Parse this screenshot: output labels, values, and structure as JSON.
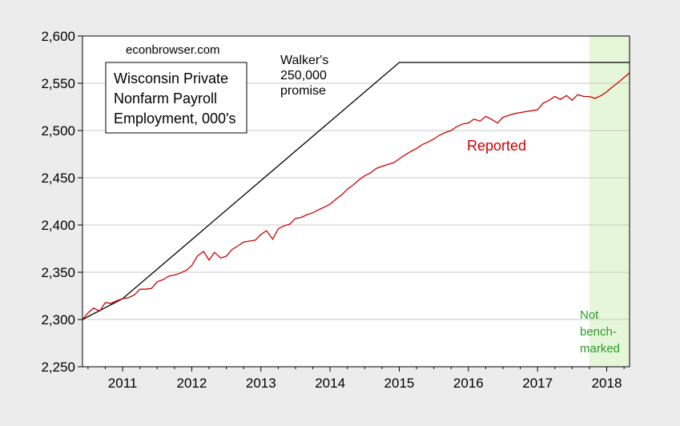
{
  "chart_data": {
    "type": "line",
    "title": "Wisconsin Private Nonfarm Payroll Employment, 000's",
    "title_lines": [
      "Wisconsin Private",
      "Nonfarm Payroll",
      "Employment, 000's"
    ],
    "source": "econbrowser.com",
    "ylim": [
      2250,
      2600
    ],
    "yticks": [
      2250,
      2300,
      2350,
      2400,
      2450,
      2500,
      2550,
      2600
    ],
    "ytick_labels": [
      "2,250",
      "2,300",
      "2,350",
      "2,400",
      "2,450",
      "2,500",
      "2,550",
      "2,600"
    ],
    "xlim": [
      2010.42,
      2018.33
    ],
    "xticks": [
      2011,
      2012,
      2013,
      2014,
      2015,
      2016,
      2017,
      2018
    ],
    "xtick_labels": [
      "2011",
      "2012",
      "2013",
      "2014",
      "2015",
      "2016",
      "2017",
      "2018"
    ],
    "grid": "horizontal",
    "colors": {
      "plot_bg": "#ffffff",
      "page_bg": "#ececec",
      "reported": "#cc0000",
      "promise": "#000000",
      "shade": "#e6f7d9",
      "shade_text": "#2a9a2a",
      "grid": "#c8c8c8"
    },
    "shaded_region": {
      "x_start": 2017.75,
      "x_end": 2018.33,
      "label_lines": [
        "Not",
        "bench-",
        "marked"
      ]
    },
    "series": [
      {
        "name": "Reported",
        "label_lines": [
          "Reported"
        ],
        "color": "#cc0000",
        "x": [
          2010.42,
          2010.5,
          2010.58,
          2010.67,
          2010.75,
          2010.83,
          2010.92,
          2011.0,
          2011.08,
          2011.17,
          2011.25,
          2011.33,
          2011.42,
          2011.5,
          2011.58,
          2011.67,
          2011.75,
          2011.83,
          2011.92,
          2012.0,
          2012.08,
          2012.17,
          2012.25,
          2012.33,
          2012.42,
          2012.5,
          2012.58,
          2012.67,
          2012.75,
          2012.83,
          2012.92,
          2013.0,
          2013.08,
          2013.17,
          2013.25,
          2013.33,
          2013.42,
          2013.5,
          2013.58,
          2013.67,
          2013.75,
          2013.83,
          2013.92,
          2014.0,
          2014.08,
          2014.17,
          2014.25,
          2014.33,
          2014.42,
          2014.5,
          2014.58,
          2014.67,
          2014.75,
          2014.83,
          2014.92,
          2015.0,
          2015.08,
          2015.17,
          2015.25,
          2015.33,
          2015.42,
          2015.5,
          2015.58,
          2015.67,
          2015.75,
          2015.83,
          2015.92,
          2016.0,
          2016.08,
          2016.17,
          2016.25,
          2016.33,
          2016.42,
          2016.5,
          2016.58,
          2016.67,
          2016.75,
          2016.83,
          2016.92,
          2017.0,
          2017.08,
          2017.17,
          2017.25,
          2017.33,
          2017.42,
          2017.5,
          2017.58,
          2017.67,
          2017.75,
          2017.83,
          2017.92,
          2018.0,
          2018.08,
          2018.17,
          2018.25,
          2018.33
        ],
        "values": [
          2300,
          2307,
          2312,
          2309,
          2318,
          2317,
          2320,
          2322,
          2323,
          2326,
          2332,
          2332,
          2333,
          2340,
          2342,
          2346,
          2347,
          2349,
          2352,
          2357,
          2367,
          2372,
          2363,
          2371,
          2365,
          2367,
          2374,
          2378,
          2382,
          2383,
          2384,
          2390,
          2394,
          2385,
          2396,
          2399,
          2401,
          2407,
          2408,
          2411,
          2413,
          2416,
          2419,
          2422,
          2427,
          2432,
          2438,
          2442,
          2448,
          2452,
          2455,
          2460,
          2462,
          2464,
          2466,
          2470,
          2474,
          2478,
          2481,
          2485,
          2488,
          2491,
          2495,
          2498,
          2500,
          2504,
          2507,
          2508,
          2512,
          2510,
          2515,
          2512,
          2508,
          2514,
          2516,
          2518,
          2519,
          2520,
          2521,
          2522,
          2529,
          2532,
          2536,
          2533,
          2537,
          2532,
          2538,
          2536,
          2536,
          2534,
          2537,
          2541,
          2546,
          2551,
          2556,
          2561
        ]
      },
      {
        "name": "Walker's 250,000 promise",
        "label_lines": [
          "Walker's",
          "250,000",
          "promise"
        ],
        "color": "#000000",
        "x": [
          2010.42,
          2011.0,
          2015.0,
          2018.33
        ],
        "values": [
          2300,
          2322,
          2572,
          2572
        ]
      }
    ]
  }
}
